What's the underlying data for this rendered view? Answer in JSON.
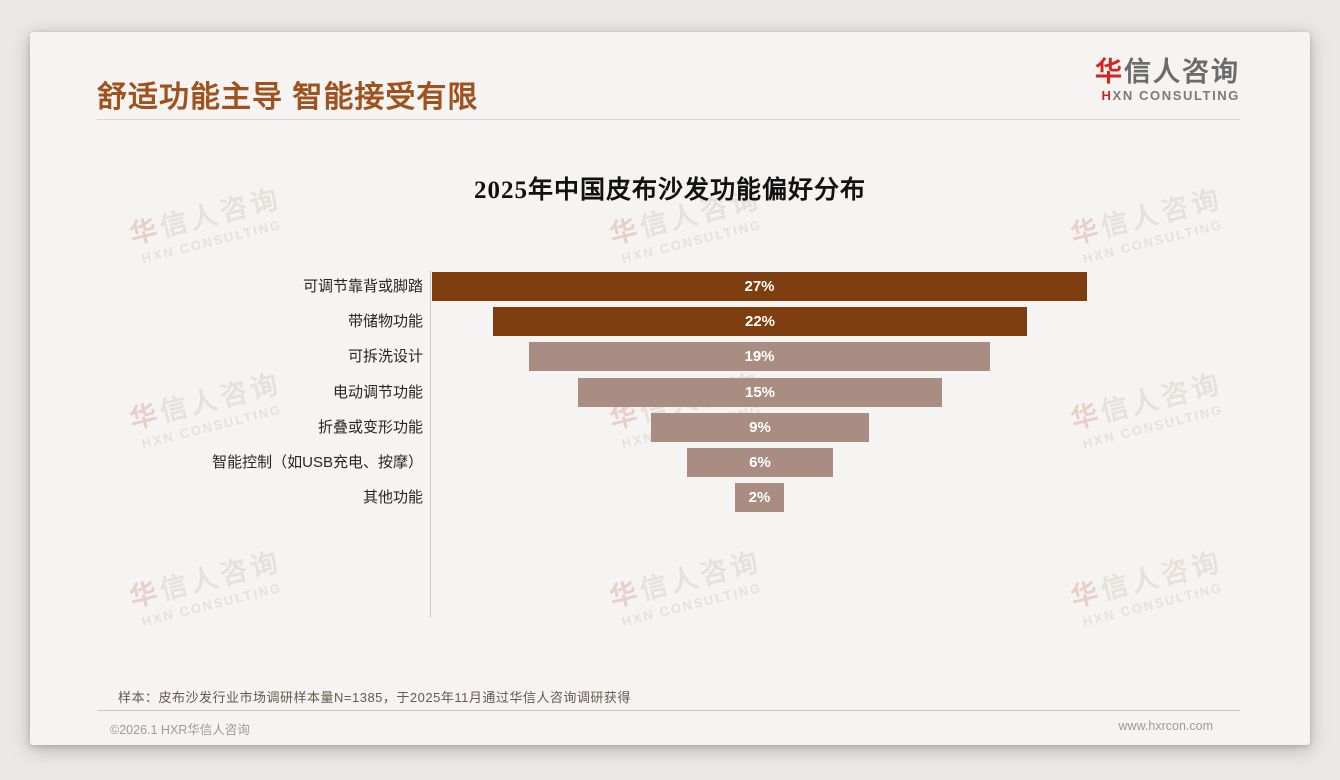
{
  "slide": {
    "title": "舒适功能主导 智能接受有限",
    "logo": {
      "cn_first": "华",
      "cn_rest": "信人咨询",
      "en_first": "H",
      "en_rest": "XN CONSULTING"
    },
    "footnote": "样本：皮布沙发行业市场调研样本量N=1385，于2025年11月通过华信人咨询调研获得",
    "footer": {
      "copyright": "©2026.1 HXR华信人咨询",
      "website": "www.hxrcon.com"
    }
  },
  "watermark": {
    "line1_first": "华",
    "line1_rest": "信人咨询",
    "line2": "HXN CONSULTING"
  },
  "colors": {
    "accent_heading": "#A0521E",
    "logo_red": "#D2251E",
    "bar_dark": "#7E3E10",
    "bar_light": "#A98D82",
    "value_label": "#FFFFFF"
  },
  "chart_data": {
    "type": "bar",
    "subtype": "centered-horizontal-funnel",
    "title": "2025年中国皮布沙发功能偏好分布",
    "categories": [
      "可调节靠背或脚踏",
      "带储物功能",
      "可拆洗设计",
      "电动调节功能",
      "折叠或变形功能",
      "智能控制（如USB充电、按摩）",
      "其他功能"
    ],
    "values": [
      27,
      22,
      19,
      15,
      9,
      6,
      2
    ],
    "labels": [
      "27%",
      "22%",
      "19%",
      "15%",
      "9%",
      "6%",
      "2%"
    ],
    "bar_colors": [
      "#7E3E10",
      "#7E3E10",
      "#A98D82",
      "#A98D82",
      "#A98D82",
      "#A98D82",
      "#A98D82"
    ],
    "unit": "%",
    "xlim": [
      0,
      27
    ],
    "grid": false,
    "legend": false
  }
}
